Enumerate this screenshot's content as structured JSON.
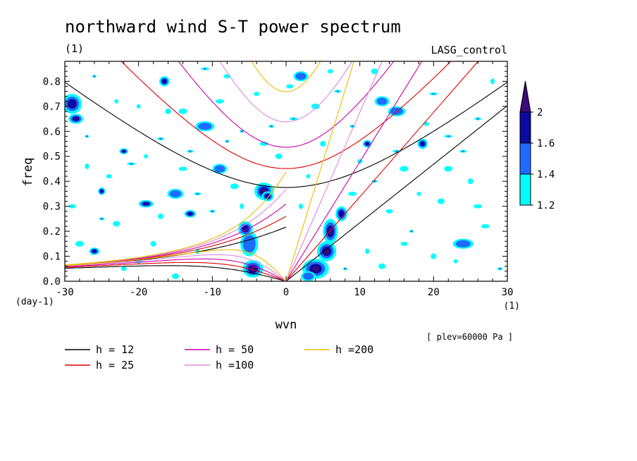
{
  "chart_data": {
    "type": "heatmap",
    "title": "northward wind S-T power spectrum",
    "subtitle_left": "(1)",
    "subtitle_right": "LASG_control",
    "xlabel": "wvn",
    "ylabel": "freq",
    "x_unit_label": "(1)",
    "y_unit_label": "(day-1)",
    "plev_label": "[ plev=60000 Pa ]",
    "xlim": [
      -30,
      30
    ],
    "ylim": [
      0,
      0.88
    ],
    "x_ticks": [
      -30,
      -20,
      -10,
      0,
      10,
      20,
      30
    ],
    "x_tick_labels": [
      "-30",
      "-20",
      "-10",
      "0",
      "10",
      "20",
      "30"
    ],
    "y_ticks": [
      0,
      0.1,
      0.2,
      0.3,
      0.4,
      0.5,
      0.6,
      0.7,
      0.8
    ],
    "y_tick_labels": [
      "0.0",
      "0.1",
      "0.2",
      "0.3",
      "0.4",
      "0.5",
      "0.6",
      "0.7",
      "0.8"
    ],
    "colorbar": {
      "levels": [
        1.2,
        1.4,
        1.6,
        2
      ],
      "level_labels": [
        "1.2",
        "1.4",
        "1.6",
        "2"
      ],
      "colors": [
        "#00ffff",
        "#1e6bff",
        "#0a0aa0",
        "#3a0a78"
      ]
    },
    "dispersion_curves": [
      {
        "label": "h = 12",
        "h": 12,
        "color": "#000000"
      },
      {
        "label": "h = 25",
        "h": 25,
        "color": "#dd0000"
      },
      {
        "label": "h = 50",
        "h": 50,
        "color": "#cc00aa"
      },
      {
        "label": "h =100",
        "h": 100,
        "color": "#dd88dd"
      },
      {
        "label": "h =200",
        "h": 200,
        "color": "#eebb00"
      }
    ],
    "power_blobs": [
      {
        "x": -4.5,
        "y": 0.05,
        "rx": 1.4,
        "ry": 0.035,
        "level": 3
      },
      {
        "x": -5,
        "y": 0.15,
        "rx": 1.2,
        "ry": 0.05,
        "level": 1
      },
      {
        "x": -5.5,
        "y": 0.21,
        "rx": 1.0,
        "ry": 0.03,
        "level": 2
      },
      {
        "x": -3,
        "y": 0.36,
        "rx": 1.3,
        "ry": 0.035,
        "level": 3
      },
      {
        "x": -2.5,
        "y": 0.34,
        "rx": 0.8,
        "ry": 0.02,
        "level": 2
      },
      {
        "x": 4,
        "y": 0.05,
        "rx": 1.8,
        "ry": 0.04,
        "level": 3
      },
      {
        "x": 5.5,
        "y": 0.12,
        "rx": 1.3,
        "ry": 0.04,
        "level": 3
      },
      {
        "x": 6,
        "y": 0.2,
        "rx": 1.0,
        "ry": 0.05,
        "level": 3
      },
      {
        "x": 7.5,
        "y": 0.27,
        "rx": 0.8,
        "ry": 0.03,
        "level": 2
      },
      {
        "x": 3,
        "y": 0.02,
        "rx": 1.0,
        "ry": 0.02,
        "level": 1
      },
      {
        "x": -29,
        "y": 0.71,
        "rx": 1.3,
        "ry": 0.04,
        "level": 2
      },
      {
        "x": -28.5,
        "y": 0.65,
        "rx": 1.0,
        "ry": 0.02,
        "level": 3
      },
      {
        "x": -26,
        "y": 0.12,
        "rx": 0.7,
        "ry": 0.015,
        "level": 2
      },
      {
        "x": -25,
        "y": 0.36,
        "rx": 0.5,
        "ry": 0.015,
        "level": 2
      },
      {
        "x": -22,
        "y": 0.52,
        "rx": 0.6,
        "ry": 0.012,
        "level": 2
      },
      {
        "x": -19,
        "y": 0.31,
        "rx": 1.0,
        "ry": 0.015,
        "level": 2
      },
      {
        "x": -16.5,
        "y": 0.8,
        "rx": 0.7,
        "ry": 0.02,
        "level": 2
      },
      {
        "x": -15,
        "y": 0.35,
        "rx": 1.1,
        "ry": 0.02,
        "level": 1
      },
      {
        "x": -13,
        "y": 0.27,
        "rx": 0.8,
        "ry": 0.015,
        "level": 2
      },
      {
        "x": -11,
        "y": 0.62,
        "rx": 1.3,
        "ry": 0.02,
        "level": 1
      },
      {
        "x": -9,
        "y": 0.45,
        "rx": 1.0,
        "ry": 0.02,
        "level": 1
      },
      {
        "x": 2,
        "y": 0.82,
        "rx": 1.0,
        "ry": 0.02,
        "level": 1
      },
      {
        "x": 13,
        "y": 0.72,
        "rx": 1.0,
        "ry": 0.02,
        "level": 1
      },
      {
        "x": 15,
        "y": 0.68,
        "rx": 1.2,
        "ry": 0.02,
        "level": 1
      },
      {
        "x": 18.5,
        "y": 0.55,
        "rx": 0.7,
        "ry": 0.02,
        "level": 2
      },
      {
        "x": 24,
        "y": 0.15,
        "rx": 1.4,
        "ry": 0.02,
        "level": 1
      },
      {
        "x": 11,
        "y": 0.55,
        "rx": 0.6,
        "ry": 0.015,
        "level": 2
      }
    ],
    "noise_specks": [
      [
        -27,
        0.58
      ],
      [
        -24,
        0.42
      ],
      [
        -23,
        0.23
      ],
      [
        -21,
        0.47
      ],
      [
        -20,
        0.7
      ],
      [
        -18,
        0.15
      ],
      [
        -17,
        0.57
      ],
      [
        -14,
        0.45
      ],
      [
        -12,
        0.12
      ],
      [
        -10,
        0.28
      ],
      [
        -8,
        0.82
      ],
      [
        -7,
        0.38
      ],
      [
        -6,
        0.6
      ],
      [
        -4,
        0.75
      ],
      [
        -1,
        0.5
      ],
      [
        1,
        0.65
      ],
      [
        3,
        0.42
      ],
      [
        5,
        0.55
      ],
      [
        7,
        0.76
      ],
      [
        9,
        0.35
      ],
      [
        11,
        0.12
      ],
      [
        12,
        0.4
      ],
      [
        14,
        0.28
      ],
      [
        16,
        0.45
      ],
      [
        17,
        0.2
      ],
      [
        19,
        0.63
      ],
      [
        21,
        0.32
      ],
      [
        22,
        0.58
      ],
      [
        23,
        0.08
      ],
      [
        25,
        0.4
      ],
      [
        26,
        0.65
      ],
      [
        27,
        0.22
      ],
      [
        28,
        0.8
      ],
      [
        29,
        0.05
      ],
      [
        -29,
        0.3
      ],
      [
        -28,
        0.15
      ],
      [
        -26,
        0.82
      ],
      [
        -22,
        0.05
      ],
      [
        -15,
        0.02
      ],
      [
        -11,
        0.85
      ],
      [
        -19,
        0.5
      ],
      [
        -16,
        0.68
      ],
      [
        -13,
        0.52
      ],
      [
        -9,
        0.72
      ],
      [
        -6,
        0.3
      ],
      [
        -2,
        0.62
      ],
      [
        0.5,
        0.78
      ],
      [
        4,
        0.7
      ],
      [
        8,
        0.05
      ],
      [
        10,
        0.48
      ],
      [
        13,
        0.06
      ],
      [
        15,
        0.52
      ],
      [
        18,
        0.35
      ],
      [
        20,
        0.1
      ],
      [
        24,
        0.52
      ],
      [
        26,
        0.3
      ],
      [
        -27,
        0.46
      ],
      [
        -25,
        0.25
      ],
      [
        -20,
        0.08
      ],
      [
        -14,
        0.68
      ],
      [
        -8,
        0.56
      ],
      [
        6,
        0.84
      ],
      [
        12,
        0.84
      ],
      [
        20,
        0.75
      ],
      [
        -23,
        0.72
      ],
      [
        -17,
        0.26
      ],
      [
        -12,
        0.35
      ],
      [
        -3,
        0.55
      ],
      [
        2,
        0.3
      ],
      [
        9,
        0.62
      ],
      [
        16,
        0.15
      ],
      [
        22,
        0.45
      ]
    ]
  }
}
